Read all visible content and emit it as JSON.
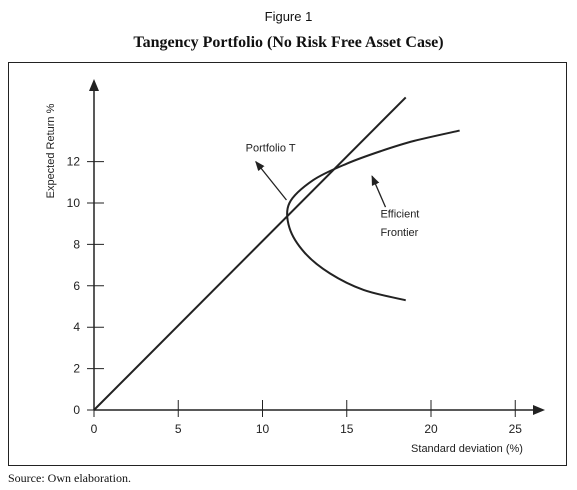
{
  "figure_label": "Figure 1",
  "source": "Source: Own elaboration.",
  "chart_data": {
    "type": "line",
    "title": "Tangency Portfolio (No Risk Free Asset Case)",
    "xlabel": "Standard deviation (%)",
    "ylabel": "Expected Return %",
    "xlim": [
      0,
      26
    ],
    "ylim": [
      0,
      15
    ],
    "xticks": [
      0,
      5,
      10,
      15,
      20,
      25
    ],
    "yticks": [
      0,
      2,
      4,
      6,
      8,
      10,
      12
    ],
    "grid": false,
    "series": [
      {
        "kind": "tangent-line",
        "x": [
          0,
          18.5
        ],
        "y": [
          0,
          15.1
        ]
      },
      {
        "kind": "frontier-upper",
        "x": [
          11.6,
          13.0,
          15.0,
          17.0,
          19.0,
          21.7
        ],
        "y": [
          10.0,
          11.1,
          11.9,
          12.5,
          13.0,
          13.5
        ]
      },
      {
        "kind": "frontier-lower",
        "x": [
          11.6,
          11.6,
          12.5,
          14.0,
          16.0,
          18.5
        ],
        "y": [
          10.0,
          8.8,
          7.6,
          6.6,
          5.8,
          5.3
        ]
      }
    ],
    "annotations": [
      {
        "text": "Portfolio T",
        "x": 9.0,
        "y": 12.5,
        "arrow_to": [
          11.6,
          10.0
        ]
      },
      {
        "text": "Efficient",
        "x": 17.0,
        "y": 9.3,
        "arrow_to": [
          16.5,
          11.3
        ]
      },
      {
        "text": "Frontier",
        "x": 17.0,
        "y": 8.4
      }
    ]
  }
}
